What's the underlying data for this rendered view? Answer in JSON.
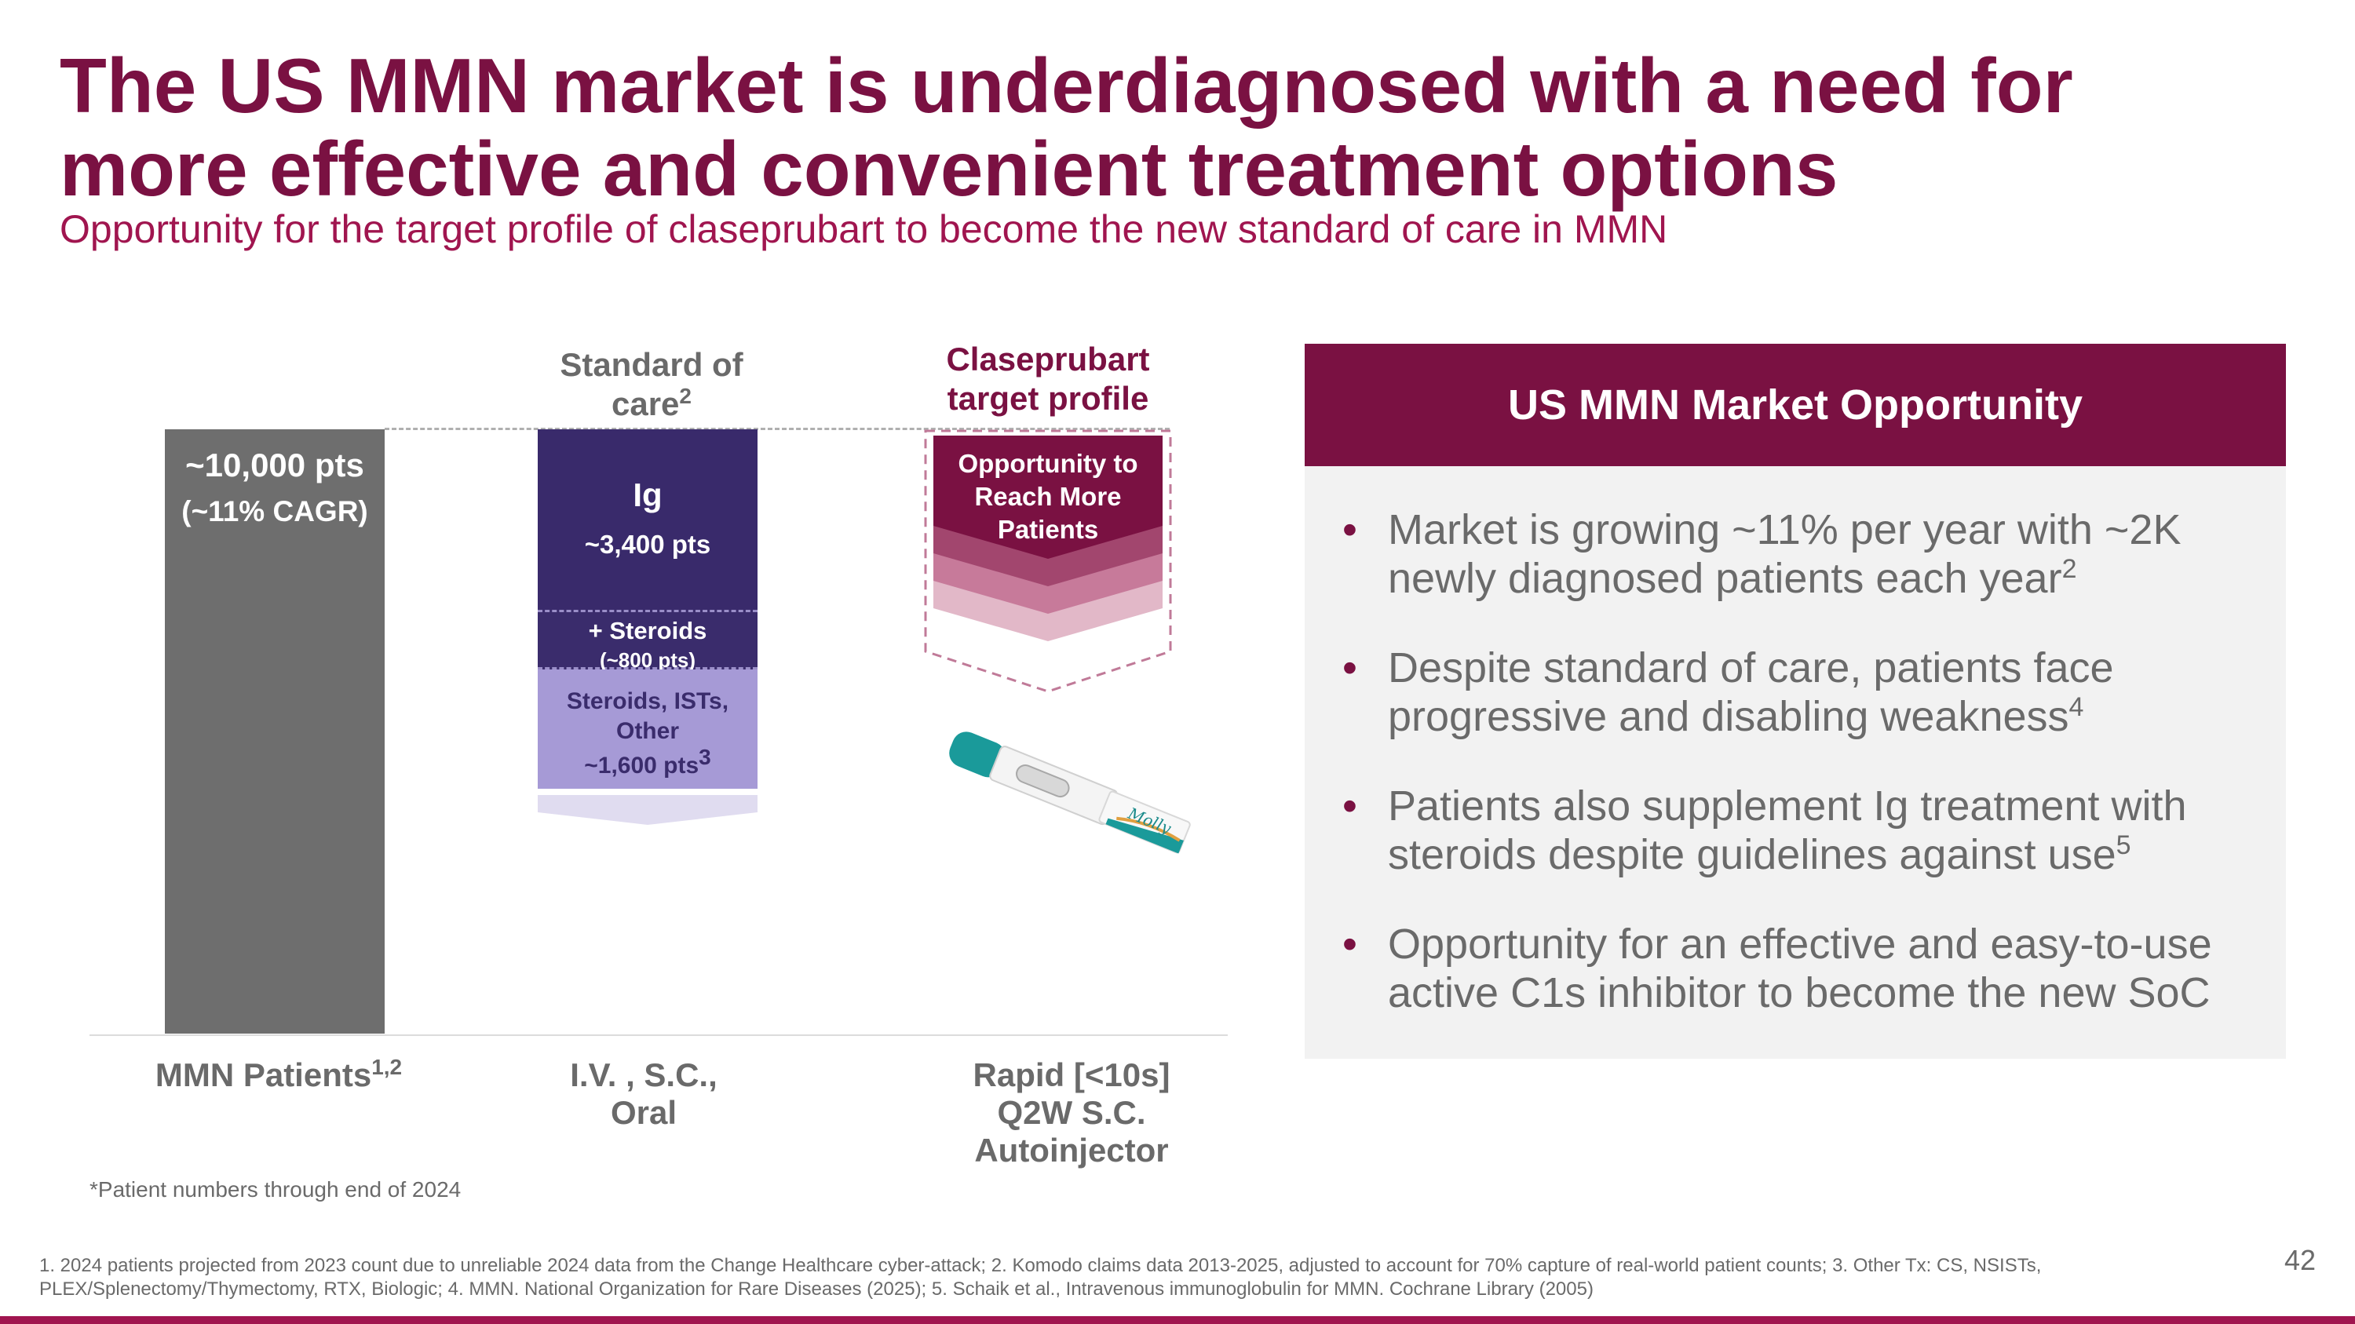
{
  "title": "The US MMN market is underdiagnosed with a need for more effective and convenient treatment options",
  "subtitle": "Opportunity for the target profile of claseprubart to become the new standard of care in MMN",
  "chart": {
    "total_bar": {
      "value": "~10,000 pts",
      "growth": "(~11% CAGR)"
    },
    "soc_header": "Standard of care",
    "soc_header_sup": "2",
    "soc_segments": [
      {
        "name": "Ig",
        "patients": "~3,400 pts"
      },
      {
        "name": "+ Steroids",
        "patients": "(~800 pts)"
      },
      {
        "name": "Steroids, ISTs, Other",
        "patients": "~1,600 pts",
        "sup": "3"
      }
    ],
    "clas_header": "Claseprubart target profile",
    "clas_label": "Opportunity to Reach More Patients",
    "device_text": "Molly",
    "x_labels": [
      {
        "text": "MMN Patients",
        "sup": "1,2"
      },
      {
        "text": "I.V. , S.C., Oral",
        "sup": ""
      },
      {
        "text": "Rapid [<10s] Q2W S.C. Autoinjector",
        "sup": ""
      }
    ],
    "note": "*Patient numbers through end of 2024"
  },
  "panel": {
    "header": "US MMN Market Opportunity",
    "bullets": [
      {
        "text": "Market is growing ~11% per year with ~2K newly diagnosed patients each year",
        "sup": "2"
      },
      {
        "text": "Despite standard of care, patients face progressive and disabling weakness",
        "sup": "4"
      },
      {
        "text": "Patients also supplement Ig treatment with steroids despite guidelines against use",
        "sup": "5"
      },
      {
        "text": "Opportunity for an effective and easy-to-use active C1s inhibitor to become the new SoC",
        "sup": ""
      }
    ],
    "bullet_char": "•"
  },
  "references": "1. 2024 patients projected from 2023 count due to unreliable 2024 data from the Change Healthcare cyber-attack; 2. Komodo claims data 2013-2025, adjusted to account for 70% capture of real-world patient counts; 3. Other Tx: CS, NSISTs, PLEX/Splenectomy/Thymectomy, RTX, Biologic; 4. MMN. National Organization for Rare Diseases (2025); 5. Schaik et al., Intravenous immunoglobulin for MMN. Cochrane Library (2005)",
  "page_number": "42",
  "colors": {
    "brand": "#7a1142",
    "accent": "#a0154f",
    "ig": "#392a6b",
    "other_tx": "#a69ad6",
    "total": "#6e6e6e",
    "panel_bg": "#f2f2f2"
  }
}
